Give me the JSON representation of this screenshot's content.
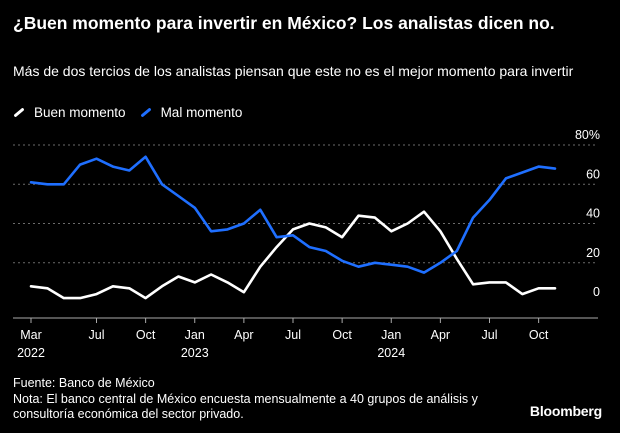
{
  "title": "¿Buen momento para invertir en México? Los analistas dicen no.",
  "subtitle": "Más de dos tercios de los analistas piensan que este no es el mejor momento para invertir",
  "footer": {
    "source": "Fuente: Banco de México",
    "note": "Nota: El banco central de México encuesta mensualmente a 40 grupos de análisis y consultoría económica del sector privado."
  },
  "brand": "Bloomberg",
  "colors": {
    "background": "#000000",
    "buen": "#ffffff",
    "mal": "#1f6fff",
    "grid": "#6b6b6b"
  },
  "chart_data": {
    "type": "line",
    "x": [
      "2022-03",
      "2022-04",
      "2022-05",
      "2022-06",
      "2022-07",
      "2022-08",
      "2022-09",
      "2022-10",
      "2022-11",
      "2022-12",
      "2023-01",
      "2023-02",
      "2023-03",
      "2023-04",
      "2023-05",
      "2023-06",
      "2023-07",
      "2023-08",
      "2023-09",
      "2023-10",
      "2023-11",
      "2023-12",
      "2024-01",
      "2024-02",
      "2024-03",
      "2024-04",
      "2024-05",
      "2024-06",
      "2024-07",
      "2024-08",
      "2024-09",
      "2024-10",
      "2024-11"
    ],
    "series": [
      {
        "name": "Buen momento",
        "color": "#ffffff",
        "values": [
          8,
          7,
          2,
          2,
          4,
          8,
          7,
          2,
          8,
          13,
          10,
          14,
          10,
          5,
          18,
          28,
          37,
          40,
          38,
          33,
          44,
          43,
          36,
          40,
          46,
          36,
          22,
          9,
          10,
          10,
          4,
          7,
          7
        ]
      },
      {
        "name": "Mal momento",
        "color": "#1f6fff",
        "values": [
          61,
          60,
          60,
          70,
          73,
          69,
          67,
          74,
          60,
          54,
          48,
          36,
          37,
          40,
          47,
          33,
          34,
          28,
          26,
          21,
          18,
          20,
          19,
          18,
          15,
          20,
          26,
          43,
          52,
          63,
          66,
          69,
          68
        ]
      }
    ],
    "ylim": [
      0,
      80
    ],
    "yticks": [
      {
        "value": 0,
        "label": "0"
      },
      {
        "value": 20,
        "label": "20"
      },
      {
        "value": 40,
        "label": "40"
      },
      {
        "value": 60,
        "label": "60"
      },
      {
        "value": 80,
        "label": "80%"
      }
    ],
    "xticks": [
      {
        "index": 0,
        "label": "Mar",
        "year": "2022"
      },
      {
        "index": 4,
        "label": "Jul",
        "year": ""
      },
      {
        "index": 7,
        "label": "Oct",
        "year": ""
      },
      {
        "index": 10,
        "label": "Jan",
        "year": "2023"
      },
      {
        "index": 13,
        "label": "Apr",
        "year": ""
      },
      {
        "index": 16,
        "label": "Jul",
        "year": ""
      },
      {
        "index": 19,
        "label": "Oct",
        "year": ""
      },
      {
        "index": 22,
        "label": "Jan",
        "year": "2024"
      },
      {
        "index": 25,
        "label": "Apr",
        "year": ""
      },
      {
        "index": 28,
        "label": "Jul",
        "year": ""
      },
      {
        "index": 31,
        "label": "Oct",
        "year": ""
      }
    ],
    "grid": true,
    "legend_position": "top-left"
  }
}
